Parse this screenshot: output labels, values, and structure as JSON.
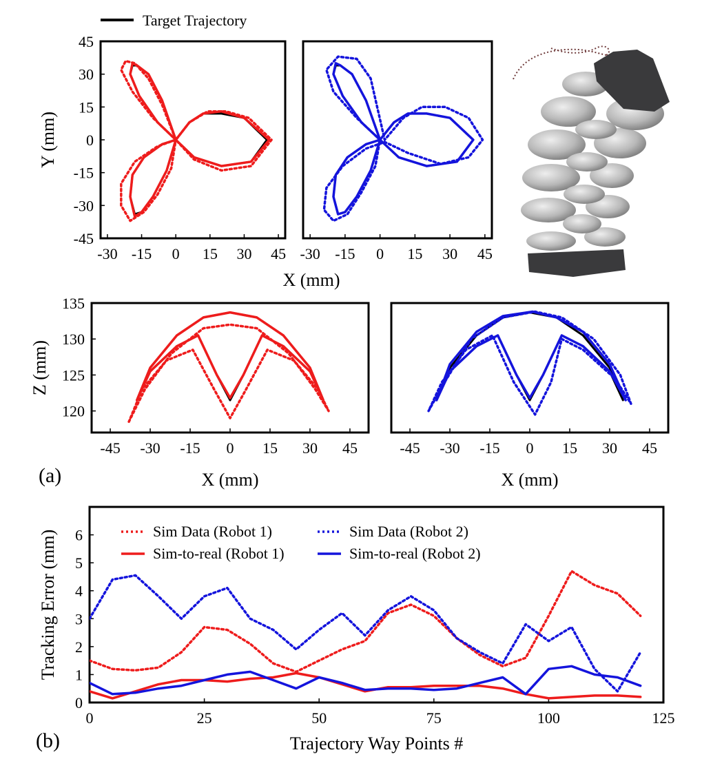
{
  "figure": {
    "panel_a": "(a)",
    "panel_b": "(b)",
    "legend_target": "Target Trajectory"
  },
  "colors": {
    "target": "#000000",
    "robot1": "#ee1c1c",
    "robot2": "#1414dc",
    "axes": "#000000",
    "robot_body": "#b4b4b4",
    "robot_base": "#3a3a3c",
    "robot_trace": "#6e3a3a"
  },
  "chart_data": [
    {
      "type": "line",
      "id": "xy1",
      "title": "",
      "xlabel": "",
      "ylabel": "Y (mm)",
      "xlim": [
        -33,
        48
      ],
      "ylim": [
        -45,
        45
      ],
      "xticks": [
        -30,
        -15,
        0,
        15,
        30,
        45
      ],
      "yticks": [
        45,
        30,
        15,
        0,
        -15,
        -30,
        -45
      ],
      "xticklabels": [
        "-30",
        "-15",
        "0",
        "15",
        "30",
        "45"
      ],
      "yticklabels": [
        "45",
        "30",
        "15",
        "0",
        "-15",
        "-30",
        "-45"
      ],
      "grid": false,
      "series": [
        {
          "name": "Target Trajectory",
          "style": "solid",
          "color": "target",
          "x": [
            0,
            -8,
            -16,
            -20,
            -19,
            -17,
            -12,
            -6,
            0,
            6,
            12,
            20,
            30,
            40,
            33,
            20,
            8,
            0,
            -6,
            -14,
            -19,
            -20,
            -18,
            -15,
            -10,
            -4,
            0
          ],
          "y": [
            0,
            8,
            20,
            30,
            34,
            34,
            30,
            18,
            0,
            8,
            12,
            12,
            10,
            0,
            -10,
            -12,
            -8,
            0,
            -2,
            -8,
            -16,
            -26,
            -34,
            -33,
            -26,
            -14,
            0
          ]
        },
        {
          "name": "Sim Data (Robot 1)",
          "style": "dotted",
          "color": "robot1",
          "x": [
            0,
            -10,
            -19,
            -24,
            -22,
            -18,
            -12,
            -6,
            0,
            6,
            14,
            22,
            32,
            42,
            33,
            20,
            8,
            0,
            -8,
            -18,
            -24,
            -24,
            -20,
            -14,
            -8,
            -2,
            0
          ],
          "y": [
            0,
            10,
            22,
            32,
            36,
            35,
            28,
            16,
            0,
            8,
            13,
            13,
            10,
            0,
            -12,
            -14,
            -9,
            0,
            -3,
            -10,
            -20,
            -30,
            -37,
            -33,
            -25,
            -13,
            0
          ]
        },
        {
          "name": "Sim-to-real (Robot 1)",
          "style": "solid",
          "color": "robot1",
          "x": [
            0,
            -8,
            -16,
            -20,
            -19,
            -17,
            -12,
            -6,
            0,
            6,
            12,
            20,
            30,
            41,
            33,
            20,
            8,
            0,
            -6,
            -14,
            -19,
            -20,
            -18,
            -15,
            -10,
            -4,
            0
          ],
          "y": [
            0,
            8,
            20,
            30,
            35,
            34,
            30,
            18,
            0,
            8,
            12,
            13,
            10,
            0,
            -10,
            -12,
            -8,
            0,
            -2,
            -8,
            -16,
            -26,
            -35,
            -33,
            -26,
            -14,
            0
          ]
        }
      ]
    },
    {
      "type": "line",
      "id": "xy2",
      "title": "",
      "xlabel": "X (mm)",
      "ylabel": "",
      "xlim": [
        -33,
        48
      ],
      "ylim": [
        -45,
        45
      ],
      "xticks": [
        -30,
        -15,
        0,
        15,
        30,
        45
      ],
      "yticks": [],
      "xticklabels": [
        "-30",
        "-15",
        "0",
        "15",
        "30",
        "45"
      ],
      "yticklabels": [],
      "grid": false,
      "series": [
        {
          "name": "Target Trajectory",
          "style": "solid",
          "color": "target",
          "x": [
            0,
            -8,
            -16,
            -20,
            -19,
            -17,
            -12,
            -6,
            0,
            6,
            12,
            20,
            30,
            40,
            33,
            20,
            8,
            0,
            -6,
            -14,
            -19,
            -20,
            -18,
            -15,
            -10,
            -4,
            0
          ],
          "y": [
            0,
            8,
            20,
            30,
            34,
            34,
            30,
            18,
            0,
            8,
            12,
            12,
            10,
            0,
            -10,
            -12,
            -8,
            0,
            -2,
            -8,
            -16,
            -26,
            -34,
            -33,
            -26,
            -14,
            0
          ]
        },
        {
          "name": "Sim Data (Robot 2)",
          "style": "dotted",
          "color": "robot2",
          "x": [
            0,
            -10,
            -20,
            -23,
            -18,
            -10,
            -4,
            -1,
            2,
            10,
            18,
            28,
            38,
            44,
            38,
            26,
            12,
            2,
            -6,
            -16,
            -23,
            -24,
            -20,
            -14,
            -8,
            -2,
            0
          ],
          "y": [
            0,
            10,
            22,
            32,
            38,
            37,
            28,
            14,
            0,
            10,
            15,
            15,
            10,
            0,
            -8,
            -11,
            -6,
            -1,
            -4,
            -12,
            -22,
            -32,
            -37,
            -34,
            -24,
            -12,
            0
          ]
        },
        {
          "name": "Sim-to-real (Robot 2)",
          "style": "solid",
          "color": "robot2",
          "x": [
            0,
            -8,
            -16,
            -20,
            -19,
            -17,
            -12,
            -6,
            0,
            6,
            12,
            20,
            30,
            40,
            33,
            20,
            8,
            0,
            -6,
            -14,
            -19,
            -20,
            -18,
            -15,
            -10,
            -4,
            0
          ],
          "y": [
            0,
            8,
            20,
            30,
            35,
            34,
            30,
            18,
            0,
            8,
            12,
            12,
            10,
            0,
            -10,
            -12,
            -8,
            0,
            -2,
            -8,
            -16,
            -26,
            -34,
            -33,
            -26,
            -14,
            0
          ]
        }
      ]
    },
    {
      "type": "line",
      "id": "xz1",
      "title": "",
      "xlabel": "X (mm)",
      "ylabel": "Z (mm)",
      "xlim": [
        -52,
        52
      ],
      "ylim": [
        117,
        135
      ],
      "xticks": [
        -45,
        -30,
        -15,
        0,
        15,
        30,
        45
      ],
      "yticks": [
        135,
        130,
        125,
        120
      ],
      "xticklabels": [
        "-45",
        "-30",
        "-15",
        "0",
        "15",
        "30",
        "45"
      ],
      "yticklabels": [
        "135",
        "130",
        "125",
        "120"
      ],
      "grid": false,
      "series": [
        {
          "name": "Target Trajectory",
          "style": "solid",
          "color": "target",
          "x": [
            -35,
            -30,
            -20,
            -10,
            0,
            10,
            20,
            30,
            35,
            30,
            20,
            12,
            5,
            0,
            -5,
            -12,
            -20,
            -30,
            -35
          ],
          "y": [
            121.5,
            126,
            130.5,
            133,
            133.7,
            133,
            130.5,
            126,
            121.5,
            125.5,
            129,
            130.5,
            125,
            121.5,
            125,
            130.5,
            129,
            125.5,
            121.5
          ]
        },
        {
          "name": "Sim Data (Robot 1)",
          "style": "dotted",
          "color": "robot1",
          "x": [
            -38,
            -32,
            -22,
            -10,
            0,
            10,
            22,
            32,
            37,
            33,
            24,
            14,
            6,
            0,
            -6,
            -14,
            -24,
            -33,
            -38
          ],
          "y": [
            118.5,
            123,
            128,
            131.5,
            132,
            131.5,
            128,
            123,
            120,
            123,
            127,
            128.5,
            123,
            119,
            123,
            128.5,
            127,
            123,
            118.5
          ]
        },
        {
          "name": "Sim-to-real (Robot 1)",
          "style": "solid",
          "color": "robot1",
          "x": [
            -35,
            -30,
            -20,
            -10,
            0,
            10,
            20,
            30,
            35,
            30,
            20,
            12,
            5,
            0,
            -5,
            -12,
            -20,
            -30,
            -35
          ],
          "y": [
            121.5,
            126,
            130.5,
            133,
            133.7,
            133,
            130.5,
            126,
            121.5,
            125.5,
            129,
            130.5,
            125,
            121.8,
            125,
            130.5,
            129,
            125.5,
            121.5
          ]
        }
      ]
    },
    {
      "type": "line",
      "id": "xz2",
      "title": "",
      "xlabel": "X (mm)",
      "ylabel": "",
      "xlim": [
        -52,
        52
      ],
      "ylim": [
        117,
        135
      ],
      "xticks": [
        -45,
        -30,
        -15,
        0,
        15,
        30,
        45
      ],
      "yticks": [],
      "xticklabels": [
        "-45",
        "-30",
        "-15",
        "0",
        "15",
        "30",
        "45"
      ],
      "yticklabels": [],
      "grid": false,
      "series": [
        {
          "name": "Target Trajectory",
          "style": "solid",
          "color": "target",
          "x": [
            -35,
            -30,
            -20,
            -10,
            0,
            10,
            20,
            30,
            35,
            30,
            20,
            12,
            5,
            0,
            -5,
            -12,
            -20,
            -30,
            -35
          ],
          "y": [
            121.5,
            126,
            130.5,
            133,
            133.7,
            133,
            130.5,
            126,
            121.5,
            125.5,
            129,
            130.5,
            125,
            121.5,
            125,
            130.5,
            129,
            125.5,
            121.5
          ]
        },
        {
          "name": "Sim Data (Robot 2)",
          "style": "dotted",
          "color": "robot2",
          "x": [
            -38,
            -32,
            -22,
            -10,
            2,
            12,
            24,
            34,
            38,
            32,
            20,
            12,
            8,
            2,
            -6,
            -14,
            -24,
            -33,
            -38
          ],
          "y": [
            120,
            124,
            130,
            133,
            133.8,
            133,
            130,
            125,
            121,
            124.5,
            128.5,
            130,
            124,
            119.5,
            124,
            130.5,
            128.5,
            124,
            120
          ]
        },
        {
          "name": "Sim-to-real (Robot 2)",
          "style": "solid",
          "color": "robot2",
          "x": [
            -35,
            -30,
            -20,
            -10,
            1,
            10,
            20,
            30,
            36,
            30,
            20,
            12,
            5,
            0,
            -5,
            -12,
            -20,
            -30,
            -35
          ],
          "y": [
            121.5,
            126.5,
            131,
            133.2,
            133.8,
            133,
            131,
            126.5,
            121.5,
            125.5,
            129,
            130.5,
            125,
            121.8,
            125,
            130.5,
            129,
            125.5,
            121.5
          ]
        }
      ]
    },
    {
      "type": "line",
      "id": "err",
      "title": "",
      "xlabel": "Trajectory Way Points #",
      "ylabel": "Tracking Error (mm)",
      "xlim": [
        0,
        125
      ],
      "ylim": [
        0,
        7
      ],
      "xticks": [
        0,
        25,
        50,
        75,
        100,
        125
      ],
      "yticks": [
        0,
        1,
        2,
        3,
        4,
        5,
        6
      ],
      "xticklabels": [
        "0",
        "25",
        "50",
        "75",
        "100",
        "125"
      ],
      "yticklabels": [
        "0",
        "1",
        "2",
        "3",
        "4",
        "5",
        "6"
      ],
      "grid": false,
      "x": [
        0,
        5,
        10,
        15,
        20,
        25,
        30,
        35,
        40,
        45,
        50,
        55,
        60,
        65,
        70,
        75,
        80,
        85,
        90,
        95,
        100,
        105,
        110,
        115,
        120
      ],
      "series": [
        {
          "name": "Sim Data (Robot 1)",
          "style": "dotted",
          "color": "robot1",
          "values": [
            1.5,
            1.2,
            1.15,
            1.25,
            1.8,
            2.7,
            2.6,
            2.1,
            1.4,
            1.1,
            1.5,
            1.9,
            2.2,
            3.2,
            3.5,
            3.1,
            2.3,
            1.7,
            1.3,
            1.6,
            3.1,
            4.7,
            4.2,
            3.9,
            3.1
          ]
        },
        {
          "name": "Sim-to-real (Robot 1)",
          "style": "solid",
          "color": "robot1",
          "values": [
            0.4,
            0.15,
            0.4,
            0.65,
            0.8,
            0.8,
            0.75,
            0.85,
            0.9,
            1.05,
            0.9,
            0.65,
            0.4,
            0.55,
            0.55,
            0.6,
            0.6,
            0.6,
            0.5,
            0.3,
            0.15,
            0.2,
            0.25,
            0.25,
            0.2
          ]
        },
        {
          "name": "Sim Data (Robot 2)",
          "style": "dotted",
          "color": "robot2",
          "values": [
            3.0,
            4.4,
            4.55,
            3.8,
            3.0,
            3.8,
            4.1,
            3.0,
            2.6,
            1.9,
            2.6,
            3.2,
            2.4,
            3.3,
            3.8,
            3.3,
            2.3,
            1.8,
            1.4,
            2.8,
            2.2,
            2.7,
            1.2,
            0.4,
            1.8
          ]
        },
        {
          "name": "Sim-to-real (Robot 2)",
          "style": "solid",
          "color": "robot2",
          "values": [
            0.7,
            0.3,
            0.35,
            0.5,
            0.6,
            0.8,
            1.0,
            1.1,
            0.8,
            0.5,
            0.9,
            0.7,
            0.45,
            0.5,
            0.5,
            0.45,
            0.5,
            0.7,
            0.9,
            0.3,
            1.2,
            1.3,
            1.0,
            0.9,
            0.6
          ]
        }
      ],
      "legend": [
        {
          "label": "Sim Data (Robot 1)",
          "style": "dotted",
          "color": "robot1"
        },
        {
          "label": "Sim Data (Robot 2)",
          "style": "dotted",
          "color": "robot2"
        },
        {
          "label": "Sim-to-real (Robot 1)",
          "style": "solid",
          "color": "robot1"
        },
        {
          "label": "Sim-to-real (Robot 2)",
          "style": "solid",
          "color": "robot2"
        }
      ]
    }
  ]
}
